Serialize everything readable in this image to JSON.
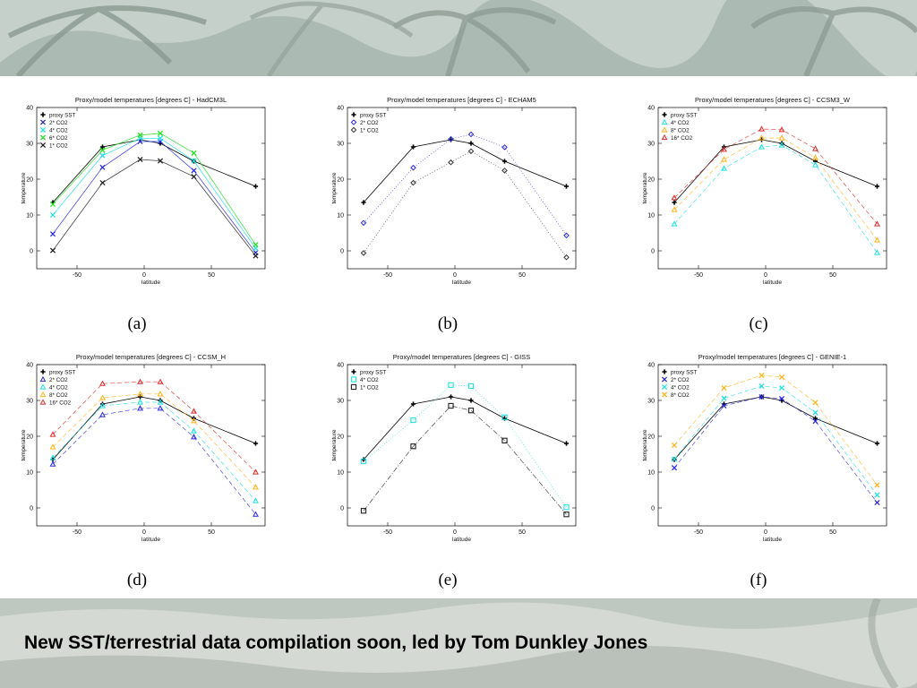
{
  "footer": {
    "text": "New SST/terrestrial data compilation soon, led by Tom Dunkley Jones"
  },
  "colors": {
    "proxy": "#000000",
    "blue": "#2a2ae0",
    "cyan": "#22e0e0",
    "green": "#22e022",
    "orange": "#ffb31a",
    "red": "#e02a2a",
    "gray": "#555555"
  },
  "chart_data": [
    {
      "type": "line",
      "caption": "(a)",
      "title": "Proxy/model temperatures [degrees C] - HadCM3L",
      "xlabel": "latitude",
      "ylabel": "temperature",
      "xlim": [
        -80,
        90
      ],
      "ylim": [
        -5,
        40
      ],
      "xticks": [
        -50,
        0,
        50
      ],
      "yticks": [
        0,
        10,
        20,
        30,
        40
      ],
      "legend": "top-left",
      "series": [
        {
          "name": "proxy SST",
          "color": "#000000",
          "marker": "plus",
          "dash": "solid",
          "x": [
            -68,
            -31,
            -3,
            12,
            37,
            83
          ],
          "y": [
            13.5,
            29,
            31,
            30,
            25,
            18
          ]
        },
        {
          "name": "2* CO2",
          "color": "#2a2ae0",
          "marker": "x",
          "dash": "solid",
          "x": [
            -68,
            -31,
            -3,
            12,
            37,
            83
          ],
          "y": [
            4.7,
            23.3,
            30.5,
            30.5,
            22.4,
            -0.5
          ]
        },
        {
          "name": "4* CO2",
          "color": "#22e0e0",
          "marker": "x",
          "dash": "solid",
          "x": [
            -68,
            -31,
            -3,
            12,
            37,
            83
          ],
          "y": [
            10,
            26.6,
            31.4,
            31.4,
            25.1,
            0.7
          ]
        },
        {
          "name": "6* CO2",
          "color": "#22e022",
          "marker": "x",
          "dash": "solid",
          "x": [
            -68,
            -31,
            -3,
            12,
            37,
            83
          ],
          "y": [
            13,
            28.1,
            32.3,
            32.8,
            27.3,
            1.7
          ]
        },
        {
          "name": "1* CO2",
          "color": "#222222",
          "marker": "x",
          "dash": "solid",
          "x": [
            -68,
            -31,
            -3,
            12,
            37,
            83
          ],
          "y": [
            0.1,
            19,
            25.5,
            25.1,
            20.7,
            -1.4
          ]
        }
      ]
    },
    {
      "type": "line",
      "caption": "(b)",
      "title": "Proxy/model temperatures [degrees C] - ECHAM5",
      "xlabel": "latitude",
      "ylabel": "temperature",
      "xlim": [
        -80,
        90
      ],
      "ylim": [
        -5,
        40
      ],
      "xticks": [
        -50,
        0,
        50
      ],
      "yticks": [
        0,
        10,
        20,
        30,
        40
      ],
      "legend": "top-left",
      "series": [
        {
          "name": "proxy SST",
          "color": "#000000",
          "marker": "plus",
          "dash": "solid",
          "x": [
            -68,
            -31,
            -3,
            12,
            37,
            83
          ],
          "y": [
            13.5,
            29,
            31,
            30,
            25,
            18
          ]
        },
        {
          "name": "2* CO2",
          "color": "#2a2ae0",
          "marker": "diamond",
          "dash": "dotted",
          "x": [
            -68,
            -31,
            -3,
            12,
            37,
            83
          ],
          "y": [
            7.8,
            23.2,
            31.2,
            32.5,
            28.9,
            4.3
          ]
        },
        {
          "name": "1* CO2",
          "color": "#333333",
          "marker": "diamond",
          "dash": "dotted",
          "x": [
            -68,
            -31,
            -3,
            12,
            37,
            83
          ],
          "y": [
            -0.6,
            19,
            24.7,
            27.8,
            22.4,
            -1.8
          ]
        }
      ]
    },
    {
      "type": "line",
      "caption": "(c)",
      "title": "Proxy/model temperatures [degrees C] - CCSM3_W",
      "xlabel": "latitude",
      "ylabel": "temperature",
      "xlim": [
        -80,
        90
      ],
      "ylim": [
        -5,
        40
      ],
      "xticks": [
        -50,
        0,
        50
      ],
      "yticks": [
        0,
        10,
        20,
        30,
        40
      ],
      "legend": "top-left",
      "series": [
        {
          "name": "proxy SST",
          "color": "#000000",
          "marker": "plus",
          "dash": "solid",
          "x": [
            -68,
            -31,
            -3,
            12,
            37,
            83
          ],
          "y": [
            13.5,
            29,
            31,
            30,
            25,
            18
          ]
        },
        {
          "name": "4* CO2",
          "color": "#22e0e0",
          "marker": "triangle",
          "dash": "dashed",
          "x": [
            -68,
            -31,
            -3,
            12,
            37,
            83
          ],
          "y": [
            7.5,
            23,
            29,
            29.5,
            24,
            -0.5
          ]
        },
        {
          "name": "8* CO2",
          "color": "#ffb31a",
          "marker": "triangle",
          "dash": "dashed",
          "x": [
            -68,
            -31,
            -3,
            12,
            37,
            83
          ],
          "y": [
            11.5,
            25.5,
            31.5,
            31.5,
            26,
            3
          ]
        },
        {
          "name": "16* CO2",
          "color": "#e02a2a",
          "marker": "triangle",
          "dash": "dashed",
          "x": [
            -68,
            -31,
            -3,
            12,
            37,
            83
          ],
          "y": [
            14.8,
            28.3,
            34,
            33.8,
            28.5,
            7.5
          ]
        }
      ]
    },
    {
      "type": "line",
      "caption": "(d)",
      "title": "Proxy/model temperatures [degrees C] - CCSM_H",
      "xlabel": "latitude",
      "ylabel": "temperature",
      "xlim": [
        -80,
        90
      ],
      "ylim": [
        -5,
        40
      ],
      "xticks": [
        -50,
        0,
        50
      ],
      "yticks": [
        0,
        10,
        20,
        30,
        40
      ],
      "legend": "top-left",
      "series": [
        {
          "name": "proxy SST",
          "color": "#000000",
          "marker": "plus",
          "dash": "solid",
          "x": [
            -68,
            -31,
            -3,
            12,
            37,
            83
          ],
          "y": [
            13.5,
            29,
            31,
            30,
            25,
            18
          ]
        },
        {
          "name": "2* CO2",
          "color": "#2a2ae0",
          "marker": "triangle",
          "dash": "dashed",
          "x": [
            -68,
            -31,
            -3,
            12,
            37,
            83
          ],
          "y": [
            12.2,
            26,
            27.8,
            27.8,
            19.8,
            -1.8
          ]
        },
        {
          "name": "4* CO2",
          "color": "#22e0e0",
          "marker": "triangle",
          "dash": "dashed",
          "x": [
            -68,
            -31,
            -3,
            12,
            37,
            83
          ],
          "y": [
            14,
            28.5,
            29.5,
            29.5,
            21.5,
            2
          ]
        },
        {
          "name": "8* CO2",
          "color": "#ffb31a",
          "marker": "triangle",
          "dash": "dashed",
          "x": [
            -68,
            -31,
            -3,
            12,
            37,
            83
          ],
          "y": [
            17,
            30.7,
            31.8,
            31.8,
            24.3,
            5.8
          ]
        },
        {
          "name": "16* CO2",
          "color": "#e02a2a",
          "marker": "triangle",
          "dash": "dashed",
          "x": [
            -68,
            -31,
            -3,
            12,
            37,
            83
          ],
          "y": [
            20.5,
            34.7,
            35.2,
            35.2,
            27,
            10
          ]
        }
      ]
    },
    {
      "type": "line",
      "caption": "(e)",
      "title": "Proxy/model temperatures [degrees C] - GISS",
      "xlabel": "latitude",
      "ylabel": "temperature",
      "xlim": [
        -80,
        90
      ],
      "ylim": [
        -5,
        40
      ],
      "xticks": [
        -50,
        0,
        50
      ],
      "yticks": [
        0,
        10,
        20,
        30,
        40
      ],
      "legend": "top-left",
      "series": [
        {
          "name": "proxy SST",
          "color": "#000000",
          "marker": "plus",
          "dash": "solid",
          "x": [
            -68,
            -31,
            -3,
            12,
            37,
            83
          ],
          "y": [
            13.5,
            29,
            31,
            30,
            25,
            18
          ]
        },
        {
          "name": "4* CO2",
          "color": "#22e0e0",
          "marker": "square",
          "dash": "dotted",
          "x": [
            -68,
            -31,
            -3,
            12,
            37,
            83
          ],
          "y": [
            13,
            24.5,
            34.3,
            34,
            25.3,
            0.2
          ]
        },
        {
          "name": "1* CO2",
          "color": "#222222",
          "marker": "square",
          "dash": "dashdot",
          "x": [
            -68,
            -31,
            -3,
            12,
            37,
            83
          ],
          "y": [
            -0.8,
            17.2,
            28.5,
            27.2,
            18.8,
            -1.8
          ]
        }
      ]
    },
    {
      "type": "line",
      "caption": "(f)",
      "title": "Proxy/model temperatures [degrees C] - GENIE-1",
      "xlabel": "latitude",
      "ylabel": "temperature",
      "xlim": [
        -80,
        90
      ],
      "ylim": [
        -5,
        40
      ],
      "xticks": [
        -50,
        0,
        50
      ],
      "yticks": [
        0,
        10,
        20,
        30,
        40
      ],
      "legend": "top-left",
      "series": [
        {
          "name": "proxy SST",
          "color": "#000000",
          "marker": "plus",
          "dash": "solid",
          "x": [
            -68,
            -31,
            -3,
            12,
            37,
            83
          ],
          "y": [
            13.5,
            29,
            31,
            30,
            25,
            18
          ]
        },
        {
          "name": "2* CO2",
          "color": "#2a2ae0",
          "marker": "x",
          "dash": "dashed",
          "x": [
            -68,
            -31,
            -3,
            12,
            37,
            83
          ],
          "y": [
            11.2,
            28.5,
            31,
            30.5,
            24.2,
            1.5
          ]
        },
        {
          "name": "4* CO2",
          "color": "#22e0e0",
          "marker": "x",
          "dash": "dashed",
          "x": [
            -68,
            -31,
            -3,
            12,
            37,
            83
          ],
          "y": [
            13.6,
            30.6,
            34,
            33.5,
            26.6,
            3.6
          ]
        },
        {
          "name": "8* CO2",
          "color": "#ffb31a",
          "marker": "x",
          "dash": "dashed",
          "x": [
            -68,
            -31,
            -3,
            12,
            37,
            83
          ],
          "y": [
            17.5,
            33.5,
            37,
            36.5,
            29.4,
            6.4
          ]
        }
      ]
    }
  ]
}
